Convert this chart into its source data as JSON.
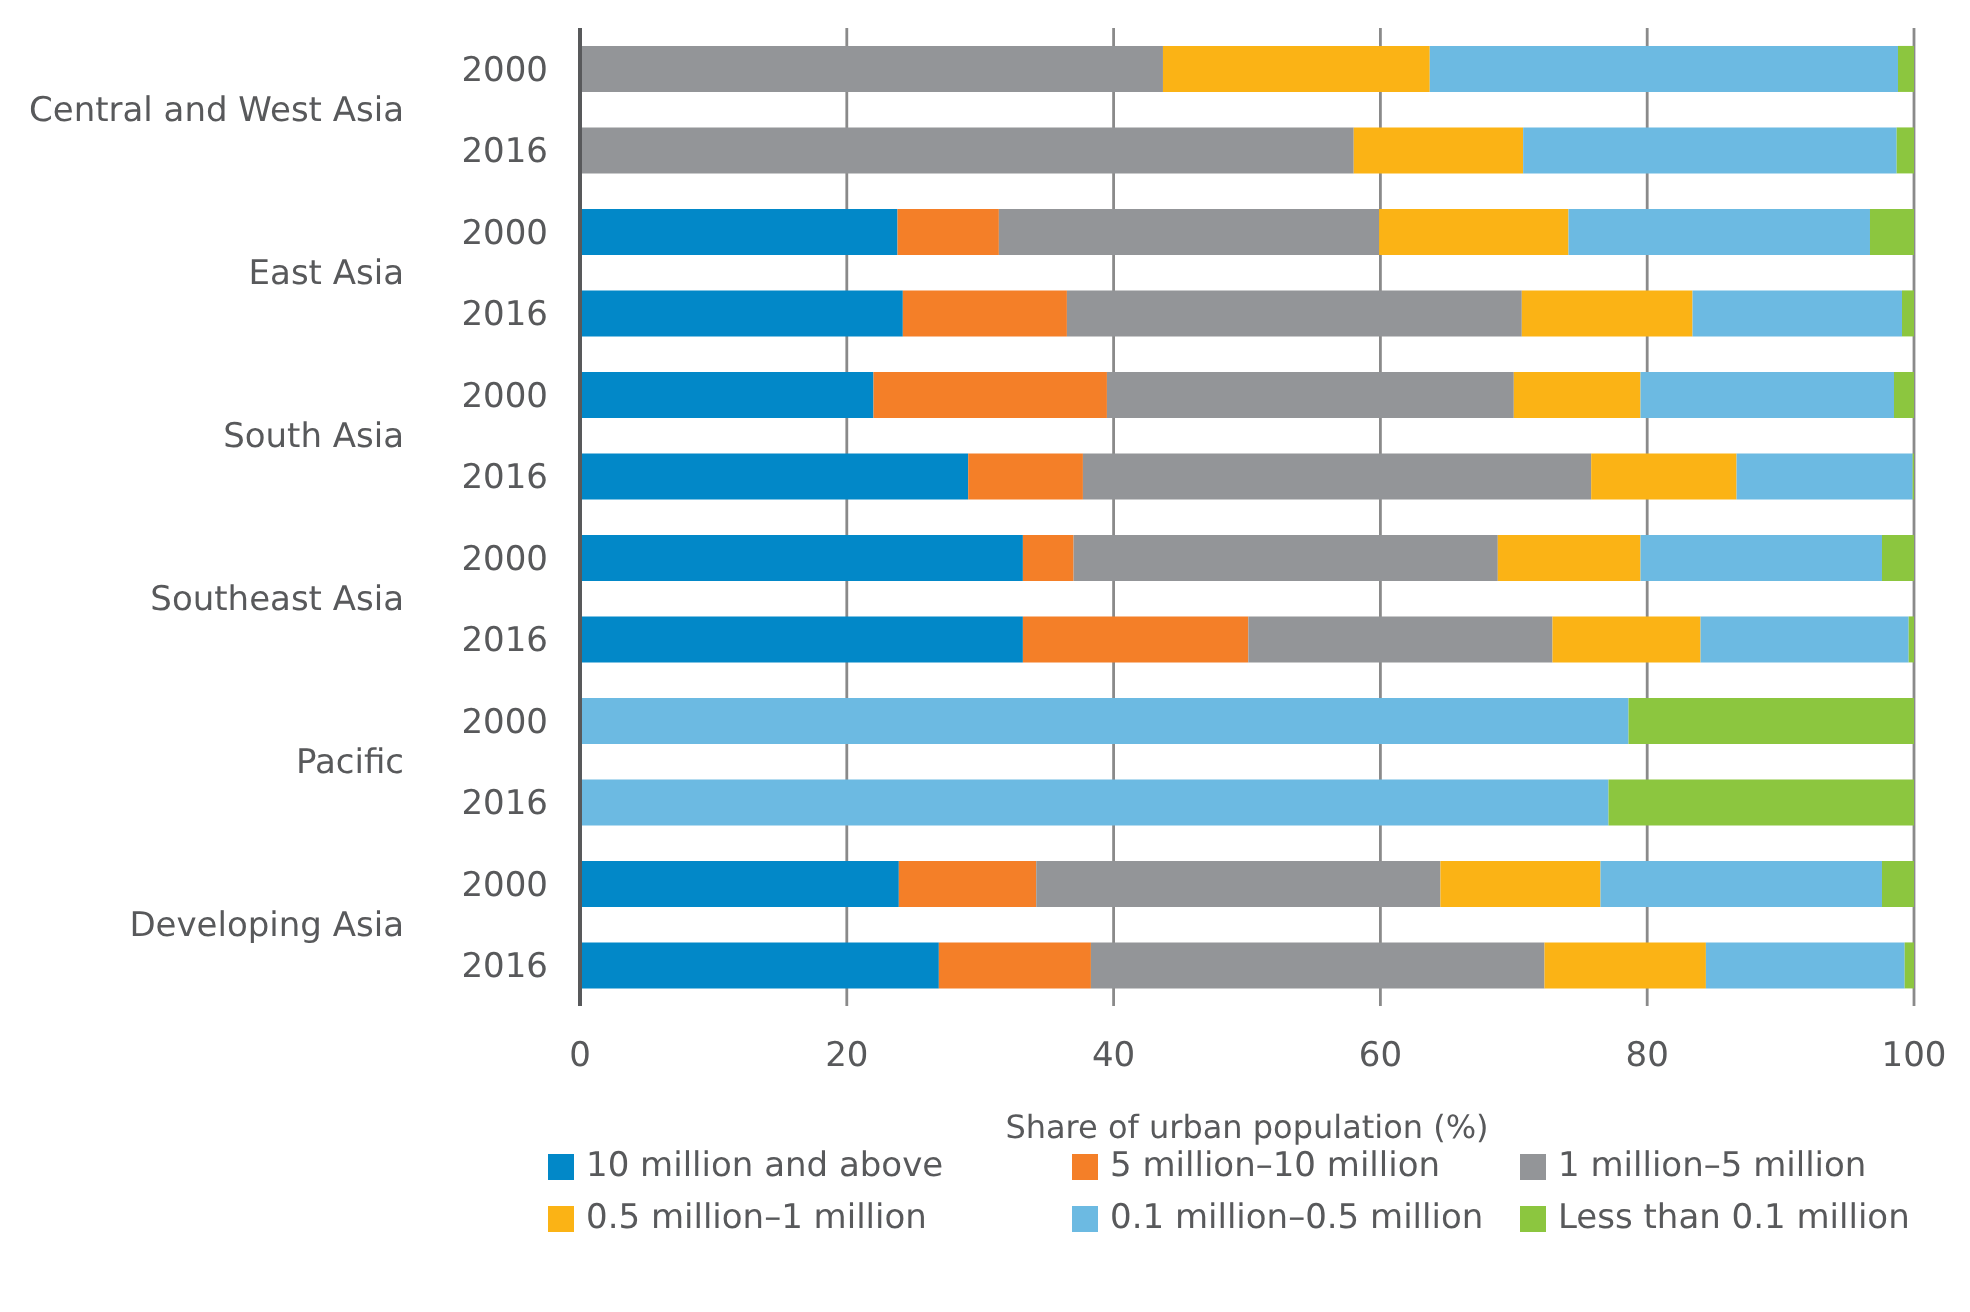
{
  "chart_data": {
    "type": "bar",
    "orientation": "horizontal",
    "stacked": true,
    "xlabel": "Share of urban population (%)",
    "categories": [
      "2000",
      "2016",
      "2000",
      "2016",
      "2000",
      "2016",
      "2000",
      "2016",
      "2000",
      "2016",
      "2000",
      "2016"
    ],
    "annotations": [
      "Central and West Asia",
      "East Asia",
      "South Asia",
      "Southeast Asia",
      "Pacific",
      "Developing Asia"
    ],
    "series": [
      {
        "name": "10 million and above",
        "color": "#0288c8",
        "values": [
          0,
          0,
          23.8,
          24.2,
          22.0,
          29.1,
          33.2,
          33.2,
          0,
          0,
          23.9,
          26.9
        ]
      },
      {
        "name": "5 million–10 million",
        "color": "#f47f28",
        "values": [
          0,
          0,
          7.6,
          12.3,
          17.5,
          8.6,
          3.8,
          16.9,
          0,
          0,
          10.3,
          11.4
        ]
      },
      {
        "name": "1 million–5 million",
        "color": "#939598",
        "values": [
          43.7,
          58.0,
          28.5,
          34.1,
          30.5,
          38.1,
          31.8,
          22.8,
          0,
          0,
          30.3,
          34.0
        ]
      },
      {
        "name": "0.5 million–1 million",
        "color": "#fbb315",
        "values": [
          20.0,
          12.7,
          14.2,
          12.8,
          9.5,
          10.9,
          10.7,
          11.1,
          0,
          0,
          12.0,
          12.1
        ]
      },
      {
        "name": "0.1 million–0.5 million",
        "color": "#6cbae2",
        "values": [
          35.1,
          28.0,
          22.6,
          15.7,
          19.0,
          13.2,
          18.1,
          15.6,
          78.6,
          77.1,
          21.1,
          14.9
        ]
      },
      {
        "name": "Less than 0.1 million",
        "color": "#8cc63f",
        "values": [
          1.2,
          1.3,
          3.3,
          0.9,
          1.5,
          0.1,
          2.4,
          0.4,
          21.4,
          22.9,
          2.4,
          0.7
        ]
      }
    ],
    "xlim": [
      0,
      100
    ],
    "xticks": [
      0,
      20,
      40,
      60,
      80,
      100
    ],
    "grid": "x",
    "legend": "bottom"
  }
}
